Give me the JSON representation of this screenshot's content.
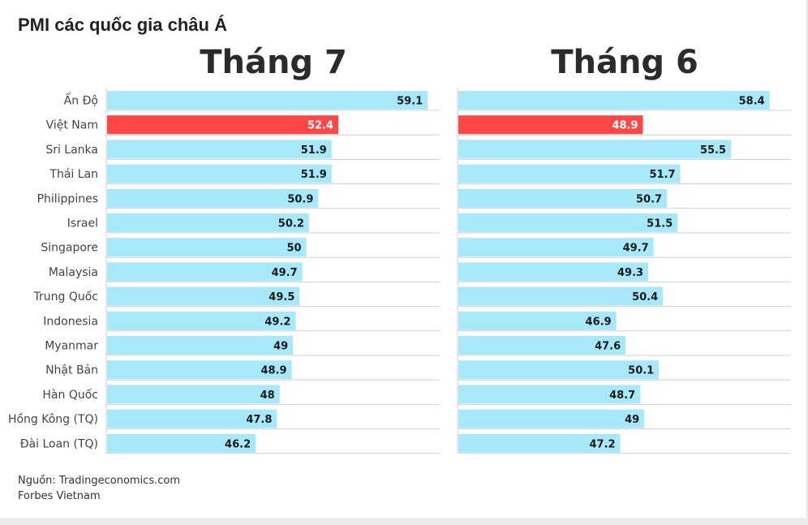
{
  "header": {
    "title": "PMI các quốc gia châu Á"
  },
  "footer": {
    "source": "Nguồn: Tradingeconomics.com",
    "publisher": "Forbes Vietnam"
  },
  "colors": {
    "bar": "#a8e8fb",
    "highlight": "#ff4747",
    "grid": "#d0d0d0"
  },
  "chart_data": [
    {
      "type": "bar",
      "orientation": "horizontal",
      "title": "Tháng 7",
      "categories": [
        "Ấn Độ",
        "Việt Nam",
        "Sri Lanka",
        "Thái Lan",
        "Philippines",
        "Israel",
        "Singapore",
        "Malaysia",
        "Trung Quốc",
        "Indonesia",
        "Myanmar",
        "Nhật Bản",
        "Hàn Quốc",
        "Hồng Kông (TQ)",
        "Đài Loan (TQ)"
      ],
      "values": [
        59.1,
        52.4,
        51.9,
        51.9,
        50.9,
        50.2,
        50,
        49.7,
        49.5,
        49.2,
        49,
        48.9,
        48,
        47.8,
        46.2
      ],
      "value_labels": [
        "59.1",
        "52.4",
        "51.9",
        "51.9",
        "50.9",
        "50.2",
        "50",
        "49.7",
        "49.5",
        "49.2",
        "49",
        "48.9",
        "48",
        "47.8",
        "46.2"
      ],
      "highlight": "Việt Nam",
      "xlim": [
        35,
        60
      ]
    },
    {
      "type": "bar",
      "orientation": "horizontal",
      "title": "Tháng 6",
      "categories": [
        "Ấn Độ",
        "Việt Nam",
        "Sri Lanka",
        "Thái Lan",
        "Philippines",
        "Israel",
        "Singapore",
        "Malaysia",
        "Trung Quốc",
        "Indonesia",
        "Myanmar",
        "Nhật Bản",
        "Hàn Quốc",
        "Hồng Kông (TQ)",
        "Đài Loan (TQ)"
      ],
      "values": [
        58.4,
        48.9,
        55.5,
        51.7,
        50.7,
        51.5,
        49.7,
        49.3,
        50.4,
        46.9,
        47.6,
        50.1,
        48.7,
        49,
        47.2
      ],
      "value_labels": [
        "58.4",
        "48.9",
        "55.5",
        "51.7",
        "50.7",
        "51.5",
        "49.7",
        "49.3",
        "50.4",
        "46.9",
        "47.6",
        "50.1",
        "48.7",
        "49",
        "47.2"
      ],
      "highlight": "Việt Nam",
      "xlim": [
        35,
        60
      ]
    }
  ]
}
